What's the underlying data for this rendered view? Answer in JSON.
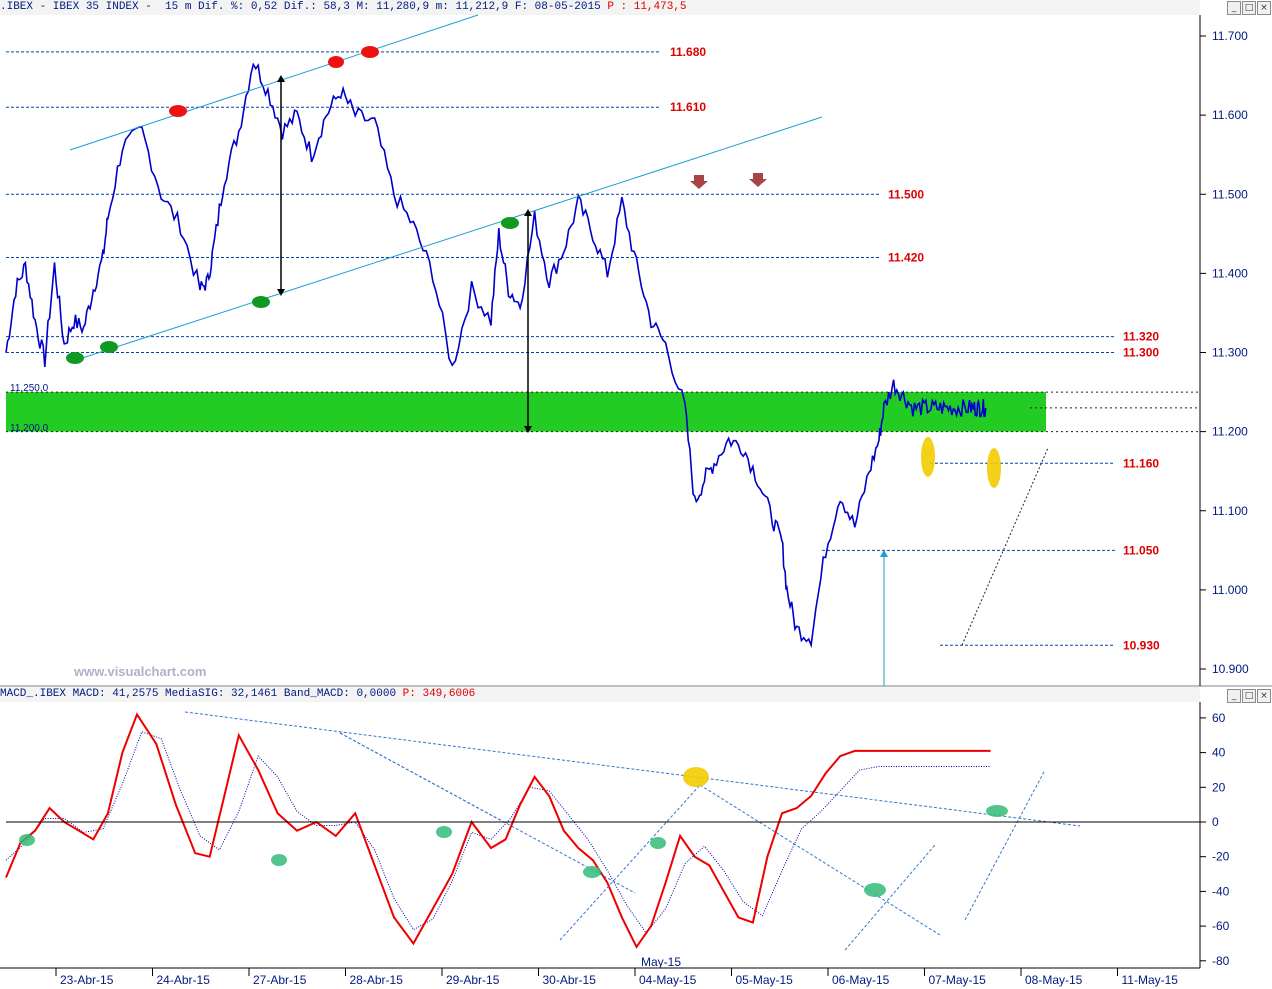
{
  "price_panel": {
    "header": {
      "prefix": ".IBEX - IBEX 35 INDEX -  15 m Dif. %: 0,52 Dif.: 58,3 M: 11,280,9 m: 11,212,9 F: 08-05-2015 ",
      "p_value": "P : 11,473,5"
    },
    "watermark": "www.visualchart.com",
    "zone_labels": [
      "11,250,0",
      "11,200,0"
    ]
  },
  "macd_panel": {
    "header": {
      "prefix": "MACD_.IBEX MACD: 41,2575 MediaSIG: 32,1461 Band_MACD: 0,0000 ",
      "p_value": "P: 349,6006"
    }
  },
  "window_buttons": [
    "_",
    "□",
    "×"
  ],
  "month_label": "May-15",
  "colors": {
    "price": "#0000cc",
    "level_line": "#0044aa",
    "level_label": "#dd0000",
    "channel": "#1aa0d0",
    "zone": "#22cc22",
    "macd": "#ee0000",
    "signal": "#0000aa",
    "trend": "#3377cc",
    "background": "#ffffff",
    "header_bg": "#f3f3f3"
  },
  "chart_data": [
    {
      "type": "line",
      "title": "IBEX 35 INDEX - 15 m",
      "ylim": [
        10880,
        11720
      ],
      "y_ticks": [
        "11.700",
        "11.600",
        "11.500",
        "11.400",
        "11.300",
        "11.200",
        "11.100",
        "11.000",
        "10.900"
      ],
      "x_ticks": [
        "23-Abr-15",
        "24-Abr-15",
        "27-Abr-15",
        "28-Abr-15",
        "29-Abr-15",
        "30-Abr-15",
        "04-May-15",
        "05-May-15",
        "06-May-15",
        "07-May-15",
        "08-May-15",
        "11-May-15"
      ],
      "x_range": [
        0,
        11.5
      ],
      "last_price": 11230,
      "levels": [
        {
          "value": 11680,
          "label": "11.680"
        },
        {
          "value": 11610,
          "label": "11.610"
        },
        {
          "value": 11500,
          "label": "11.500"
        },
        {
          "value": 11420,
          "label": "11.420"
        },
        {
          "value": 11320,
          "label": "11.320"
        },
        {
          "value": 11300,
          "label": "11.300"
        },
        {
          "value": 11160,
          "label": "11.160"
        },
        {
          "value": 11050,
          "label": "11.050"
        },
        {
          "value": 10930,
          "label": "10.930"
        }
      ],
      "support_zone": [
        11200,
        11250
      ],
      "series": [
        {
          "x": [
            0.0,
            0.1,
            0.2,
            0.3,
            0.4,
            0.5,
            0.6,
            0.7,
            0.8,
            0.9,
            1.0,
            1.05,
            1.2,
            1.4,
            1.6,
            1.8,
            2.0,
            2.08,
            2.15,
            2.25,
            2.4,
            2.55,
            2.7,
            2.85,
            3.0,
            3.15,
            3.3,
            3.45,
            3.6,
            3.8,
            4.0,
            4.2,
            4.4,
            4.6,
            4.8,
            5.0,
            5.08,
            5.18,
            5.3,
            5.45,
            5.6,
            5.75,
            5.9,
            6.05,
            6.2,
            6.35,
            6.5,
            6.65,
            6.8,
            7.0,
            7.1,
            7.2,
            7.3,
            7.45,
            7.6,
            7.75,
            7.9,
            8.0,
            8.05,
            8.15,
            8.3,
            8.45,
            8.6,
            8.75,
            8.9,
            9.0,
            9.05,
            9.15,
            9.25,
            9.35,
            9.45,
            9.55,
            9.65,
            9.75,
            9.85,
            9.95,
            10.0,
            10.05,
            10.1
          ],
          "values": [
            11300,
            11380,
            11410,
            11340,
            11290,
            11410,
            11310,
            11340,
            11330,
            11380,
            11420,
            11470,
            11560,
            11580,
            11500,
            11460,
            11380,
            11390,
            11440,
            11520,
            11580,
            11670,
            11630,
            11580,
            11600,
            11550,
            11600,
            11630,
            11600,
            11590,
            11500,
            11460,
            11400,
            11280,
            11380,
            11340,
            11450,
            11380,
            11360,
            11470,
            11390,
            11430,
            11490,
            11450,
            11400,
            11490,
            11410,
            11340,
            11310,
            11230,
            11110,
            11140,
            11160,
            11190,
            11180,
            11140,
            11090,
            11060,
            11000,
            10950,
            10940,
            11050,
            11120,
            11080,
            11150,
            11190,
            11230,
            11260,
            11245,
            11230,
            11230,
            11230,
            11230,
            11230,
            11230,
            11230,
            11230,
            11230,
            11230
          ]
        }
      ]
    },
    {
      "type": "line",
      "title": "MACD",
      "ylim": [
        -85,
        65
      ],
      "y_ticks": [
        60,
        40,
        20,
        0,
        -20,
        -40,
        -60,
        -80
      ],
      "x_range": [
        0,
        11.5
      ],
      "series": [
        {
          "name": "MACD",
          "x": [
            0.0,
            0.15,
            0.3,
            0.45,
            0.6,
            0.75,
            0.9,
            1.05,
            1.2,
            1.35,
            1.55,
            1.75,
            1.95,
            2.1,
            2.25,
            2.4,
            2.6,
            2.8,
            3.0,
            3.2,
            3.4,
            3.6,
            3.8,
            4.0,
            4.2,
            4.4,
            4.6,
            4.8,
            5.0,
            5.15,
            5.3,
            5.45,
            5.6,
            5.75,
            5.9,
            6.05,
            6.2,
            6.35,
            6.5,
            6.65,
            6.8,
            6.95,
            7.1,
            7.25,
            7.4,
            7.55,
            7.7,
            7.85,
            8.0,
            8.15,
            8.3,
            8.45,
            8.6,
            8.75,
            8.9,
            9.05,
            9.2,
            9.35,
            9.5,
            9.65,
            9.8,
            9.95,
            10.05,
            10.15
          ],
          "values": [
            -32,
            -12,
            -5,
            8,
            0,
            -5,
            -10,
            5,
            40,
            62,
            45,
            10,
            -18,
            -20,
            15,
            50,
            30,
            5,
            -5,
            0,
            -8,
            5,
            -25,
            -55,
            -70,
            -50,
            -30,
            0,
            -15,
            -10,
            10,
            26,
            15,
            -5,
            -15,
            -22,
            -35,
            -55,
            -72,
            -60,
            -35,
            -8,
            -20,
            -25,
            -40,
            -55,
            -58,
            -20,
            5,
            8,
            15,
            28,
            38,
            41,
            41,
            41,
            41,
            41,
            41,
            41,
            41,
            41,
            41,
            41
          ]
        },
        {
          "name": "MediaSIG",
          "x": [
            0.0,
            0.2,
            0.4,
            0.6,
            0.8,
            1.0,
            1.2,
            1.4,
            1.6,
            1.8,
            2.0,
            2.2,
            2.4,
            2.6,
            2.8,
            3.0,
            3.2,
            3.4,
            3.6,
            3.8,
            4.0,
            4.2,
            4.4,
            4.6,
            4.8,
            5.0,
            5.2,
            5.4,
            5.6,
            5.8,
            6.0,
            6.2,
            6.4,
            6.6,
            6.8,
            7.0,
            7.2,
            7.4,
            7.6,
            7.8,
            8.0,
            8.2,
            8.4,
            8.6,
            8.8,
            9.0,
            9.2,
            9.4,
            9.6,
            9.8,
            10.0,
            10.15
          ],
          "values": [
            -22,
            -12,
            2,
            2,
            -6,
            -4,
            22,
            52,
            48,
            18,
            -8,
            -16,
            6,
            38,
            26,
            6,
            -2,
            -2,
            0,
            -16,
            -44,
            -62,
            -56,
            -34,
            -6,
            -10,
            2,
            20,
            18,
            4,
            -10,
            -28,
            -48,
            -64,
            -50,
            -24,
            -14,
            -28,
            -46,
            -54,
            -28,
            -4,
            6,
            18,
            30,
            32,
            32,
            32,
            32,
            32,
            32,
            32
          ]
        }
      ]
    }
  ]
}
